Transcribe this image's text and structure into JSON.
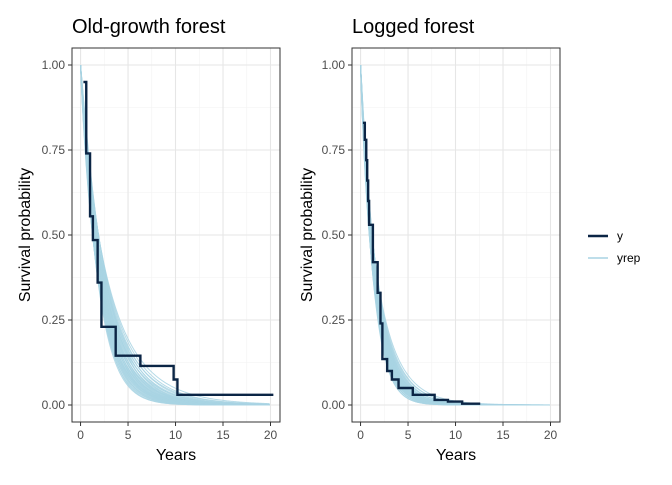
{
  "colors": {
    "y_line": "#0b2545",
    "yrep_line": "#a8d3e3",
    "grid_major": "#e6e6e6",
    "grid_minor": "#f2f2f2",
    "panel_border": "#333333",
    "text": "#000000",
    "tick_text": "#4d4d4d"
  },
  "legend": {
    "position": "right",
    "items": [
      {
        "label": "y",
        "key": "y"
      },
      {
        "label": "yrep",
        "key": "yrep"
      }
    ]
  },
  "chart_data": [
    {
      "type": "line",
      "title": "Old-growth forest",
      "xlabel": "Years",
      "ylabel": "Survival probability",
      "xlim": [
        0,
        20
      ],
      "ylim": [
        0,
        1
      ],
      "x_ticks": [
        "0",
        "5",
        "10",
        "15",
        "20"
      ],
      "y_ticks": [
        "0.00",
        "0.25",
        "0.50",
        "0.75",
        "1.00"
      ],
      "grid": true,
      "series": [
        {
          "name": "y",
          "step": true,
          "points": [
            [
              0.3,
              0.95
            ],
            [
              0.6,
              0.95
            ],
            [
              0.6,
              0.74
            ],
            [
              1.0,
              0.74
            ],
            [
              1.0,
              0.555
            ],
            [
              1.3,
              0.555
            ],
            [
              1.3,
              0.485
            ],
            [
              1.8,
              0.485
            ],
            [
              1.8,
              0.36
            ],
            [
              2.2,
              0.36
            ],
            [
              2.2,
              0.23
            ],
            [
              3.7,
              0.23
            ],
            [
              3.7,
              0.145
            ],
            [
              6.3,
              0.145
            ],
            [
              6.3,
              0.115
            ],
            [
              9.8,
              0.115
            ],
            [
              9.8,
              0.075
            ],
            [
              10.2,
              0.075
            ],
            [
              10.2,
              0.03
            ],
            [
              20.3,
              0.03
            ]
          ]
        },
        {
          "name": "yrep",
          "draws": 40,
          "rate_range": [
            0.35,
            0.55
          ],
          "x_max": 20
        }
      ]
    },
    {
      "type": "line",
      "title": "Logged forest",
      "xlabel": "Years",
      "ylabel": "Survival probability",
      "xlim": [
        0,
        20
      ],
      "ylim": [
        0,
        1
      ],
      "x_ticks": [
        "0",
        "5",
        "10",
        "15",
        "20"
      ],
      "y_ticks": [
        "0.00",
        "0.25",
        "0.50",
        "0.75",
        "1.00"
      ],
      "grid": true,
      "series": [
        {
          "name": "y",
          "step": true,
          "points": [
            [
              0.25,
              0.83
            ],
            [
              0.45,
              0.83
            ],
            [
              0.45,
              0.78
            ],
            [
              0.6,
              0.78
            ],
            [
              0.6,
              0.72
            ],
            [
              0.7,
              0.72
            ],
            [
              0.7,
              0.66
            ],
            [
              0.8,
              0.66
            ],
            [
              0.8,
              0.6
            ],
            [
              0.9,
              0.6
            ],
            [
              0.9,
              0.53
            ],
            [
              1.3,
              0.53
            ],
            [
              1.3,
              0.42
            ],
            [
              1.8,
              0.42
            ],
            [
              1.8,
              0.33
            ],
            [
              2.1,
              0.33
            ],
            [
              2.1,
              0.24
            ],
            [
              2.3,
              0.24
            ],
            [
              2.3,
              0.135
            ],
            [
              2.8,
              0.135
            ],
            [
              2.8,
              0.1
            ],
            [
              3.3,
              0.1
            ],
            [
              3.3,
              0.075
            ],
            [
              4.0,
              0.075
            ],
            [
              4.0,
              0.05
            ],
            [
              5.5,
              0.05
            ],
            [
              5.5,
              0.03
            ],
            [
              7.8,
              0.03
            ],
            [
              7.8,
              0.015
            ],
            [
              9.2,
              0.015
            ],
            [
              9.2,
              0.01
            ],
            [
              10.7,
              0.01
            ],
            [
              10.7,
              0.004
            ],
            [
              12.6,
              0.004
            ]
          ]
        },
        {
          "name": "yrep",
          "draws": 40,
          "rate_range": [
            0.55,
            0.75
          ],
          "x_max": 20
        }
      ]
    }
  ]
}
